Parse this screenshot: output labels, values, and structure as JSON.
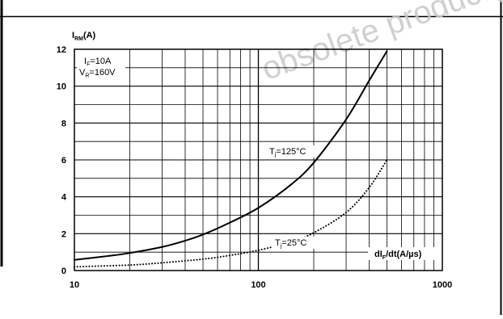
{
  "chart_data": {
    "type": "line",
    "y_axis_label": {
      "main": "I",
      "sub": "RM",
      "unit": "(A)"
    },
    "x_axis_label": {
      "main": "dI",
      "sub": "F",
      "unit": "/dt(A/µs)"
    },
    "x_scale": "log",
    "xlim": [
      10,
      1000
    ],
    "ylim": [
      0,
      12
    ],
    "x_ticks": [
      "10",
      "100",
      "1000"
    ],
    "y_ticks": [
      "0",
      "2",
      "4",
      "6",
      "8",
      "10",
      "12"
    ],
    "grid": true,
    "conditions": [
      {
        "main": "I",
        "sub": "F",
        "value": "=10A"
      },
      {
        "main": "V",
        "sub": "R",
        "value": "=160V"
      }
    ],
    "series": [
      {
        "name": {
          "main": "T",
          "sub": "j",
          "value": "=125°C"
        },
        "style": "solid",
        "color": "#000000",
        "x": [
          10,
          15,
          20,
          30,
          40,
          50,
          70,
          100,
          150,
          200,
          300,
          400,
          500
        ],
        "y": [
          0.58,
          0.78,
          0.95,
          1.28,
          1.62,
          1.95,
          2.6,
          3.4,
          4.65,
          5.85,
          8.2,
          10.3,
          11.9
        ]
      },
      {
        "name": {
          "main": "T",
          "sub": "j",
          "value": "=25°C"
        },
        "style": "dotted",
        "color": "#000000",
        "x": [
          10,
          20,
          30,
          50,
          70,
          100,
          150,
          200,
          300,
          400,
          500
        ],
        "y": [
          0.2,
          0.3,
          0.42,
          0.62,
          0.82,
          1.1,
          1.55,
          2.05,
          3.15,
          4.5,
          6.0
        ]
      }
    ]
  },
  "watermark": "obsolete product(s)",
  "colors": {
    "line": "#000000",
    "grid": "#000000",
    "background": "#ffffff",
    "watermark": "#c8c8c8"
  }
}
